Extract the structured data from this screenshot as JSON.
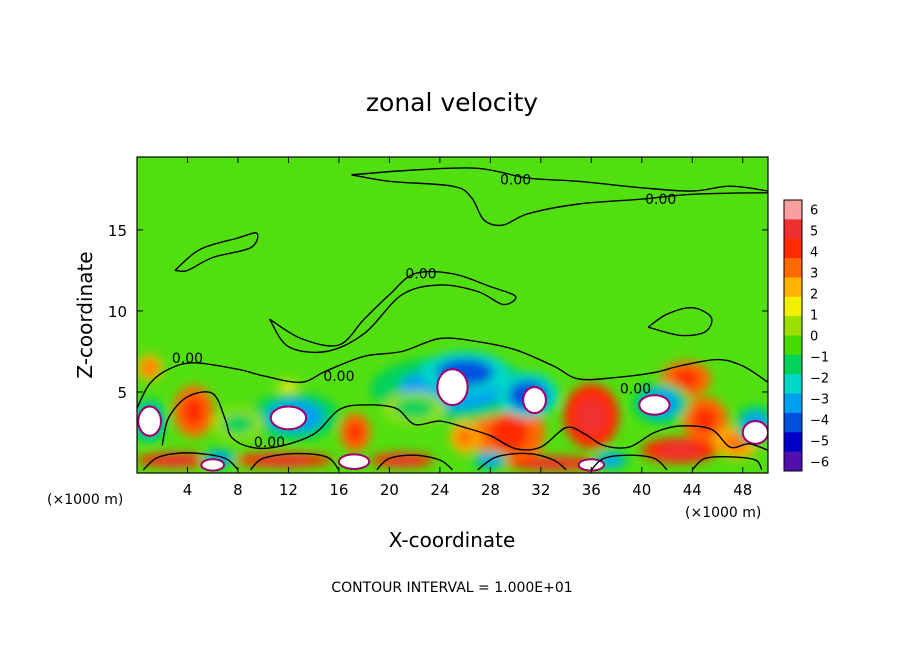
{
  "chart_data": {
    "type": "heatmap",
    "title": "zonal velocity",
    "xlabel": "X-coordinate",
    "ylabel": "Z-coordinate",
    "x_units_left": "(×1000 m)",
    "x_units_right": "(×1000 m)",
    "xlim": [
      0,
      50
    ],
    "ylim": [
      0,
      19.5
    ],
    "x_ticks": [
      4,
      8,
      12,
      16,
      20,
      24,
      28,
      32,
      36,
      40,
      44,
      48
    ],
    "y_ticks": [
      5,
      10,
      15
    ],
    "colorbar": {
      "ticks": [
        6,
        5,
        4,
        3,
        2,
        1,
        0,
        -1,
        -2,
        -3,
        -4,
        -5,
        -6
      ],
      "colors": [
        "#f8a0a0",
        "#ee3030",
        "#ff2a00",
        "#ff6a00",
        "#ffb400",
        "#f0f000",
        "#9be000",
        "#46dc00",
        "#00d25a",
        "#00d8c8",
        "#00a0f0",
        "#0050e0",
        "#0000c8",
        "#5010b0"
      ]
    },
    "contour_label": "0.00",
    "contour_labels": [
      {
        "x": 30,
        "y": 18.1
      },
      {
        "x": 41.5,
        "y": 16.9
      },
      {
        "x": 22.5,
        "y": 12.3
      },
      {
        "x": 4,
        "y": 7.1
      },
      {
        "x": 16,
        "y": 6.0
      },
      {
        "x": 39.5,
        "y": 5.2
      },
      {
        "x": 10.5,
        "y": 1.9
      }
    ],
    "positive_blobs": [
      {
        "x": 1,
        "y": 6.5,
        "rx": 1.0,
        "ry": 0.8,
        "v": 3
      },
      {
        "x": 4.5,
        "y": 3.8,
        "rx": 1.6,
        "ry": 1.6,
        "v": 4
      },
      {
        "x": 17.3,
        "y": 2.5,
        "rx": 1.2,
        "ry": 1.2,
        "v": 4
      },
      {
        "x": 29.5,
        "y": 2.5,
        "rx": 2.8,
        "ry": 2.2,
        "v": 4
      },
      {
        "x": 36,
        "y": 3.5,
        "rx": 2.2,
        "ry": 2.0,
        "v": 5
      },
      {
        "x": 43.5,
        "y": 5.8,
        "rx": 2.0,
        "ry": 1.1,
        "v": 4
      },
      {
        "x": 45,
        "y": 3.3,
        "rx": 1.8,
        "ry": 1.4,
        "v": 4
      },
      {
        "x": 47.5,
        "y": 1.9,
        "rx": 1.8,
        "ry": 1.0,
        "v": 3
      },
      {
        "x": 3,
        "y": 0.8,
        "rx": 3.0,
        "ry": 0.45,
        "v": 5
      },
      {
        "x": 11.5,
        "y": 0.8,
        "rx": 4.0,
        "ry": 0.45,
        "v": 5
      },
      {
        "x": 21,
        "y": 0.8,
        "rx": 2.5,
        "ry": 0.45,
        "v": 5
      },
      {
        "x": 33,
        "y": 0.6,
        "rx": 3.5,
        "ry": 0.45,
        "v": 5
      },
      {
        "x": 43,
        "y": 1.4,
        "rx": 3.0,
        "ry": 0.8,
        "v": 5
      },
      {
        "x": 12,
        "y": 5.3,
        "rx": 1.0,
        "ry": 0.5,
        "v": 1
      },
      {
        "x": 26,
        "y": 2.2,
        "rx": 1.2,
        "ry": 1.0,
        "v": 3
      }
    ],
    "negative_blobs": [
      {
        "x": 25,
        "y": 5.2,
        "rx": 6.5,
        "ry": 2.0,
        "v": -4
      },
      {
        "x": 26,
        "y": 6.2,
        "rx": 3.5,
        "ry": 1.3,
        "v": -5
      },
      {
        "x": 31,
        "y": 4.8,
        "rx": 2.4,
        "ry": 1.4,
        "v": -5
      },
      {
        "x": 12.5,
        "y": 3.5,
        "rx": 3.5,
        "ry": 1.5,
        "v": -4
      },
      {
        "x": 8,
        "y": 3.0,
        "rx": 2.0,
        "ry": 1.0,
        "v": -2
      },
      {
        "x": 1,
        "y": 3.2,
        "rx": 1.4,
        "ry": 1.4,
        "v": -4
      },
      {
        "x": 41.5,
        "y": 4.3,
        "rx": 2.3,
        "ry": 1.3,
        "v": -4
      },
      {
        "x": 49,
        "y": 3.0,
        "rx": 1.6,
        "ry": 1.2,
        "v": -4
      },
      {
        "x": 6.5,
        "y": 0.9,
        "rx": 1.5,
        "ry": 0.6,
        "v": -4
      },
      {
        "x": 28,
        "y": 0.8,
        "rx": 1.5,
        "ry": 0.6,
        "v": -4
      },
      {
        "x": 37.5,
        "y": 0.8,
        "rx": 1.5,
        "ry": 0.6,
        "v": -4
      },
      {
        "x": 22,
        "y": 4.0,
        "rx": 2.5,
        "ry": 1.0,
        "v": -2
      }
    ],
    "white_patches": [
      {
        "x": 25,
        "y": 5.3,
        "rx": 1.2,
        "ry": 1.1
      },
      {
        "x": 31.5,
        "y": 4.5,
        "rx": 0.9,
        "ry": 0.8
      },
      {
        "x": 12,
        "y": 3.4,
        "rx": 1.4,
        "ry": 0.7
      },
      {
        "x": 1,
        "y": 3.2,
        "rx": 0.9,
        "ry": 0.9
      },
      {
        "x": 41,
        "y": 4.2,
        "rx": 1.2,
        "ry": 0.6
      },
      {
        "x": 49,
        "y": 2.5,
        "rx": 1.0,
        "ry": 0.7
      },
      {
        "x": 17.2,
        "y": 0.7,
        "rx": 1.2,
        "ry": 0.45
      },
      {
        "x": 6,
        "y": 0.5,
        "rx": 0.9,
        "ry": 0.35
      },
      {
        "x": 36,
        "y": 0.5,
        "rx": 1.0,
        "ry": 0.35
      }
    ],
    "contours": [
      [
        [
          17,
          18.4
        ],
        [
          22,
          18.7
        ],
        [
          27,
          18.8
        ],
        [
          31,
          18.2
        ],
        [
          35,
          18.0
        ],
        [
          40,
          17.6
        ],
        [
          44,
          17.4
        ],
        [
          47,
          17.7
        ],
        [
          50,
          17.4
        ]
      ],
      [
        [
          17,
          18.4
        ],
        [
          20,
          18.0
        ],
        [
          25,
          17.7
        ],
        [
          26.5,
          17.0
        ],
        [
          27.5,
          15.6
        ],
        [
          29,
          15.3
        ],
        [
          31,
          16.0
        ],
        [
          35,
          16.6
        ],
        [
          40,
          16.9
        ],
        [
          44,
          17.2
        ],
        [
          50,
          17.3
        ]
      ],
      [
        [
          3,
          12.5
        ],
        [
          5,
          13.8
        ],
        [
          8,
          14.5
        ],
        [
          9.5,
          14.8
        ],
        [
          9,
          13.9
        ],
        [
          6,
          13.3
        ],
        [
          4,
          12.5
        ],
        [
          3,
          12.5
        ]
      ],
      [
        [
          10.5,
          9.5
        ],
        [
          13,
          8.3
        ],
        [
          16,
          7.9
        ],
        [
          18,
          9.5
        ],
        [
          20,
          11.0
        ],
        [
          22,
          12.3
        ],
        [
          25,
          12.3
        ],
        [
          28,
          11.5
        ],
        [
          30,
          10.9
        ],
        [
          29,
          10.4
        ],
        [
          27,
          11.2
        ],
        [
          24,
          11.6
        ],
        [
          21,
          11.0
        ],
        [
          18,
          8.6
        ],
        [
          15,
          7.5
        ],
        [
          12,
          7.8
        ],
        [
          10.5,
          9.5
        ]
      ],
      [
        [
          40.5,
          9.0
        ],
        [
          42,
          9.8
        ],
        [
          44,
          10.2
        ],
        [
          45.5,
          9.6
        ],
        [
          45,
          8.7
        ],
        [
          43,
          8.5
        ],
        [
          40.5,
          9.0
        ]
      ],
      [
        [
          0,
          4.0
        ],
        [
          1,
          5.5
        ],
        [
          2.5,
          6.4
        ],
        [
          4.5,
          6.8
        ],
        [
          8,
          6.4
        ],
        [
          10,
          6.0
        ],
        [
          13,
          5.6
        ],
        [
          15,
          6.3
        ],
        [
          18,
          7.2
        ],
        [
          21,
          7.5
        ],
        [
          24,
          8.3
        ],
        [
          27,
          8.1
        ],
        [
          30,
          7.6
        ],
        [
          33,
          6.6
        ],
        [
          35,
          5.8
        ],
        [
          38,
          5.9
        ],
        [
          41,
          6.2
        ],
        [
          43,
          6.6
        ],
        [
          46,
          7.0
        ],
        [
          48,
          6.6
        ],
        [
          50,
          5.6
        ]
      ],
      [
        [
          2,
          1.7
        ],
        [
          2.5,
          3.4
        ],
        [
          4,
          4.7
        ],
        [
          6,
          4.9
        ],
        [
          7,
          3.3
        ],
        [
          7.5,
          2.2
        ],
        [
          9,
          1.6
        ],
        [
          11,
          1.6
        ],
        [
          14,
          2.4
        ],
        [
          16,
          3.9
        ],
        [
          18,
          4.2
        ],
        [
          20.5,
          4.0
        ],
        [
          22,
          3.0
        ],
        [
          24,
          3.2
        ],
        [
          26,
          2.8
        ],
        [
          28,
          2.3
        ],
        [
          30,
          1.5
        ],
        [
          32,
          1.6
        ],
        [
          34,
          2.8
        ],
        [
          35.5,
          2.4
        ],
        [
          37,
          1.7
        ],
        [
          39,
          1.6
        ],
        [
          41,
          2.5
        ],
        [
          43,
          2.9
        ],
        [
          45.5,
          2.7
        ],
        [
          47,
          1.6
        ],
        [
          48.5,
          1.8
        ],
        [
          50,
          1.4
        ]
      ],
      [
        [
          0.5,
          0.2
        ],
        [
          1.5,
          0.9
        ],
        [
          3,
          1.2
        ],
        [
          5,
          1.2
        ],
        [
          7,
          0.9
        ],
        [
          8,
          0.2
        ]
      ],
      [
        [
          9,
          0.2
        ],
        [
          10,
          0.9
        ],
        [
          12.5,
          1.2
        ],
        [
          15,
          1.0
        ],
        [
          16,
          0.2
        ]
      ],
      [
        [
          19,
          0.2
        ],
        [
          20,
          0.9
        ],
        [
          22,
          1.1
        ],
        [
          24,
          0.8
        ],
        [
          25,
          0.2
        ]
      ],
      [
        [
          27,
          0.2
        ],
        [
          28.5,
          1.0
        ],
        [
          31,
          1.2
        ],
        [
          33,
          0.8
        ],
        [
          34,
          0.2
        ]
      ],
      [
        [
          36,
          0.2
        ],
        [
          37,
          0.9
        ],
        [
          39,
          1.1
        ],
        [
          41,
          0.9
        ],
        [
          42,
          0.2
        ]
      ],
      [
        [
          44,
          0.2
        ],
        [
          45,
          0.9
        ],
        [
          47,
          1.0
        ],
        [
          49,
          0.8
        ],
        [
          49.5,
          0.2
        ]
      ]
    ],
    "footnote": "CONTOUR INTERVAL = 1.000E+01"
  }
}
